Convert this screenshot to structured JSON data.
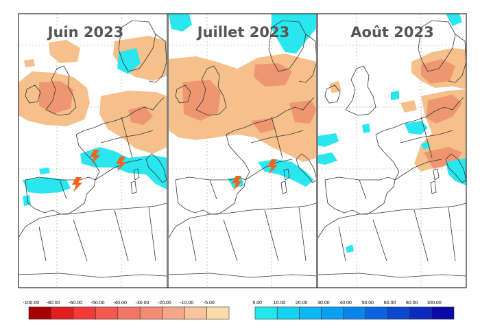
{
  "panels": [
    {
      "title": "Juin 2023"
    },
    {
      "title": "Juillet 2023"
    },
    {
      "title": "Août 2023"
    }
  ],
  "legend": {
    "negative": {
      "labels": [
        "-100.00",
        "-80.00",
        "-60.00",
        "-50.00",
        "-40.00",
        "-30.00",
        "-20.00",
        "-10.00",
        "-5.00"
      ],
      "colors": [
        "#a80000",
        "#e02020",
        "#f23a3a",
        "#f25a4e",
        "#f47466",
        "#f48c74",
        "#f6a886",
        "#f8c49c",
        "#fadcaa"
      ]
    },
    "positive": {
      "labels": [
        "5.00",
        "10.00",
        "20.00",
        "30.00",
        "40.00",
        "50.00",
        "60.00",
        "80.00",
        "100.00"
      ],
      "colors": [
        "#22e8ee",
        "#14d2f0",
        "#0cb8f4",
        "#0aa0f2",
        "#0b84ec",
        "#0a64e0",
        "#0a48d0",
        "#0a2ac0",
        "#0a0aa8"
      ]
    }
  },
  "colors": {
    "dry": "#f5c08c",
    "dry_strong": "#ee9670",
    "wet": "#2ae6ee",
    "lightning": "#f2641e",
    "frame": "#000000",
    "separator": "#808080",
    "coast": "#333333"
  },
  "icons": [
    "lightning-icon"
  ]
}
